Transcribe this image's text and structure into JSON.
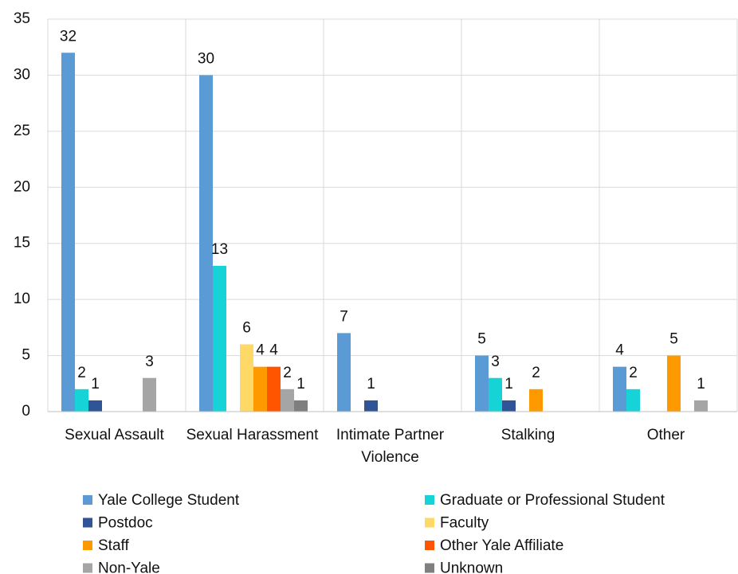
{
  "chart_data": {
    "type": "bar",
    "categories": [
      "Sexual Assault",
      "Sexual Harassment",
      "Intimate Partner Violence",
      "Stalking",
      "Other"
    ],
    "series": [
      {
        "name": "Yale College Student",
        "color": "#5b9bd5",
        "values": [
          32,
          30,
          7,
          5,
          4
        ]
      },
      {
        "name": "Graduate or Professional Student",
        "color": "#16d3d8",
        "values": [
          2,
          13,
          null,
          3,
          2
        ]
      },
      {
        "name": "Postdoc",
        "color": "#2f5597",
        "values": [
          1,
          null,
          1,
          1,
          null
        ]
      },
      {
        "name": "Faculty",
        "color": "#ffd966",
        "values": [
          null,
          6,
          null,
          null,
          null
        ]
      },
      {
        "name": "Staff",
        "color": "#ff9900",
        "values": [
          null,
          4,
          null,
          2,
          5
        ]
      },
      {
        "name": "Other Yale Affiliate",
        "color": "#ff5500",
        "values": [
          null,
          4,
          null,
          null,
          null
        ]
      },
      {
        "name": "Non-Yale",
        "color": "#a5a5a5",
        "values": [
          3,
          2,
          null,
          null,
          1
        ]
      },
      {
        "name": "Unknown",
        "color": "#7f7f7f",
        "values": [
          null,
          1,
          null,
          null,
          null
        ]
      }
    ],
    "ylim": [
      0,
      35
    ],
    "yticks": [
      0,
      5,
      10,
      15,
      20,
      25,
      30,
      35
    ],
    "grid": true
  }
}
